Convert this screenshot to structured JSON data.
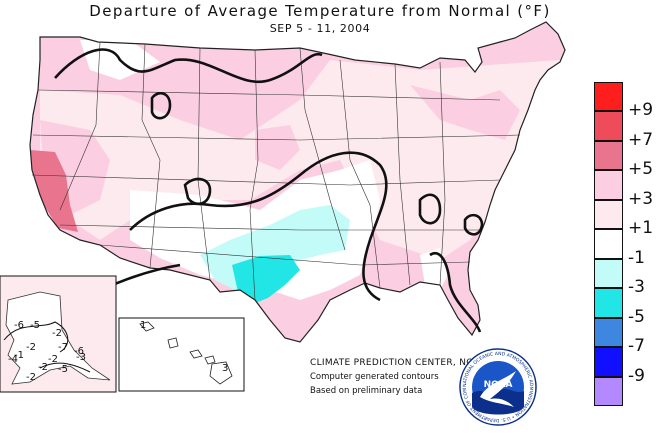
{
  "title": "Departure of Average Temperature from Normal (°F)",
  "subtitle": "SEP 5 - 11, 2004",
  "legend": [
    {
      "label": "+9",
      "color": "#ff1e1e"
    },
    {
      "label": "+7",
      "color": "#ee4b5b"
    },
    {
      "label": "+5",
      "color": "#e8758d"
    },
    {
      "label": "+3",
      "color": "#fbcfe1"
    },
    {
      "label": "+1",
      "color": "#fdeaee"
    },
    {
      "label": "-1",
      "color": "#ffffff"
    },
    {
      "label": "-3",
      "color": "#c2fbf8"
    },
    {
      "label": "-5",
      "color": "#22e6e6"
    },
    {
      "label": "-7",
      "color": "#3d87e0"
    },
    {
      "label": "-9",
      "color": "#1010ff"
    },
    {
      "label": "",
      "color": "#b389ff"
    }
  ],
  "contour_labels": {
    "alaska": [
      "-6",
      "-5",
      "-2",
      "-1",
      "-2",
      "-7",
      "-4",
      "-2",
      "-3",
      "-6",
      "-2",
      "-5",
      "-2"
    ],
    "hawaii": [
      "1",
      "3"
    ]
  },
  "credits": {
    "line1": "CLIMATE PREDICTION CENTER, NOAA",
    "line2": "Computer generated contours",
    "line3": "Based on preliminary data"
  },
  "logo": {
    "text": "NOAA",
    "ring_text": "NATIONAL OCEANIC AND ATMOSPHERIC ADMINISTRATION • U.S. DEPARTMENT OF COMMERCE •",
    "colors": {
      "ring": "#ffffff",
      "sky": "#1a56c7",
      "sea": "#0b2f8a",
      "bird": "#ffffff"
    }
  }
}
